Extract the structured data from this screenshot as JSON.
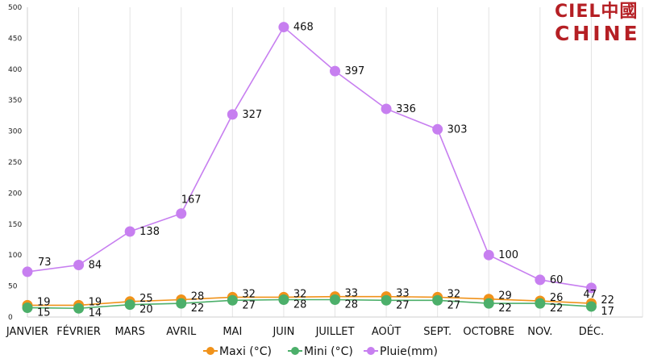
{
  "brand": {
    "line1": "CIEL中國",
    "line2": "CHINE",
    "color": "#b51f24"
  },
  "chart_data": {
    "type": "line",
    "categories": [
      "JANVIER",
      "FÉVRIER",
      "MARS",
      "AVRIL",
      "MAI",
      "JUIN",
      "JUILLET",
      "AOÛT",
      "SEPT.",
      "OCTOBRE",
      "NOV.",
      "DÉC."
    ],
    "series": [
      {
        "name": "Maxi (°C)",
        "color": "#f0921a",
        "values": [
          19,
          19,
          25,
          28,
          32,
          32,
          33,
          33,
          32,
          29,
          26,
          22
        ]
      },
      {
        "name": "Mini (°C)",
        "color": "#4caf6a",
        "values": [
          15,
          14,
          20,
          22,
          27,
          28,
          28,
          27,
          27,
          22,
          22,
          17
        ]
      },
      {
        "name": "Pluie(mm)",
        "color": "#c77ff0",
        "values": [
          73,
          84,
          138,
          167,
          327,
          468,
          397,
          336,
          303,
          100,
          60,
          47
        ]
      }
    ],
    "yticks": [
      0,
      50,
      100,
      150,
      200,
      250,
      300,
      350,
      400,
      450,
      500
    ],
    "ylim": [
      0,
      500
    ],
    "grid": "vertical",
    "legend": "bottom",
    "data_labels": true
  }
}
